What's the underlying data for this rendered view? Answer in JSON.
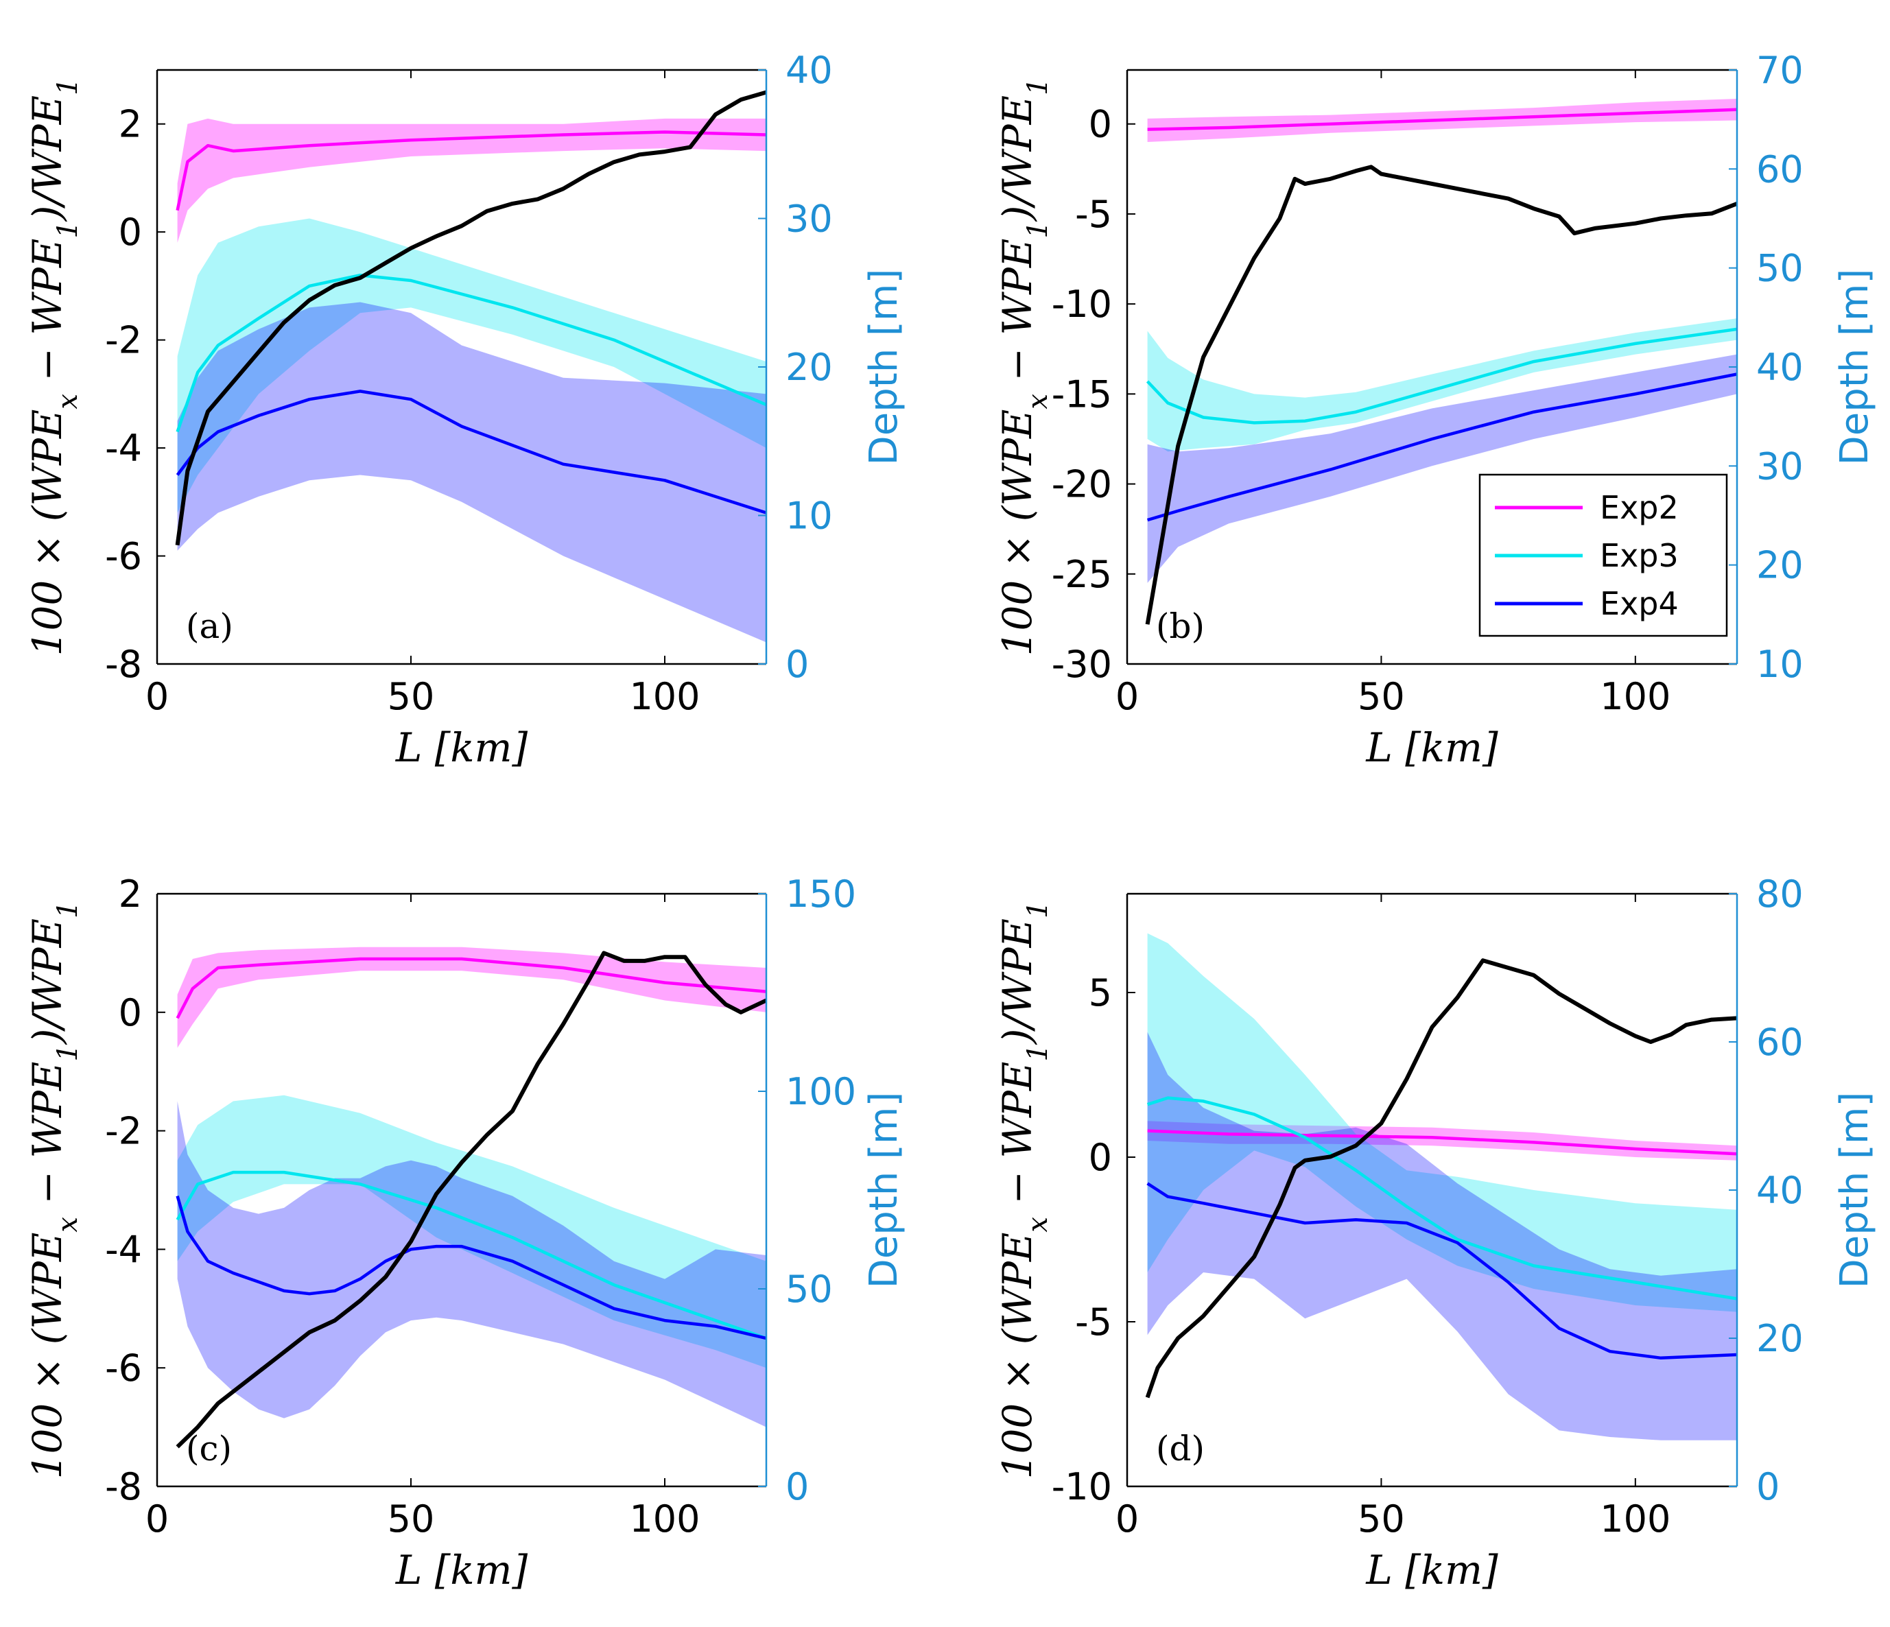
{
  "colors": {
    "exp2": "#ff00ff",
    "exp3": "#00e5ee",
    "exp4": "#0000ff",
    "depth": "#000000",
    "right_axis": "#1f8fd4"
  },
  "chart_data": [
    {
      "type": "line",
      "panel_label": "(a)",
      "xlabel": "L [km]",
      "ylabel": "100 × (WPE_x − WPE_1)/WPE_1",
      "y2label": "Depth [m]",
      "xlim": [
        0,
        120
      ],
      "ylim": [
        -8,
        3
      ],
      "y2lim": [
        0,
        40
      ],
      "xticks": [
        "0",
        "50",
        "100"
      ],
      "yticks": [
        "-8",
        "-6",
        "-4",
        "-2",
        "0",
        "2"
      ],
      "y2ticks": [
        "0",
        "10",
        "20",
        "30",
        "40"
      ],
      "series": [
        {
          "name": "Exp2",
          "x": [
            4,
            6,
            10,
            15,
            30,
            50,
            80,
            100,
            120
          ],
          "y": [
            0.4,
            1.3,
            1.6,
            1.5,
            1.6,
            1.7,
            1.8,
            1.85,
            1.8
          ],
          "lower": [
            -0.2,
            0.4,
            0.8,
            1.0,
            1.2,
            1.4,
            1.5,
            1.55,
            1.5
          ],
          "upper": [
            0.9,
            2.0,
            2.1,
            2.0,
            2.0,
            2.0,
            2.0,
            2.1,
            2.1
          ]
        },
        {
          "name": "Exp3",
          "x": [
            4,
            8,
            12,
            20,
            30,
            40,
            50,
            70,
            90,
            120
          ],
          "y": [
            -3.7,
            -2.6,
            -2.1,
            -1.6,
            -1.0,
            -0.8,
            -0.9,
            -1.4,
            -2.0,
            -3.2
          ],
          "lower": [
            -5.2,
            -4.5,
            -4.0,
            -3.0,
            -2.2,
            -1.5,
            -1.4,
            -1.9,
            -2.5,
            -4.0
          ],
          "upper": [
            -2.3,
            -0.8,
            -0.2,
            0.1,
            0.25,
            0.0,
            -0.3,
            -0.9,
            -1.5,
            -2.4
          ]
        },
        {
          "name": "Exp4",
          "x": [
            4,
            8,
            12,
            20,
            30,
            40,
            50,
            60,
            80,
            100,
            120
          ],
          "y": [
            -4.5,
            -4.0,
            -3.7,
            -3.4,
            -3.1,
            -2.95,
            -3.1,
            -3.6,
            -4.3,
            -4.6,
            -5.2
          ],
          "lower": [
            -5.9,
            -5.5,
            -5.2,
            -4.9,
            -4.6,
            -4.5,
            -4.6,
            -5.0,
            -6.0,
            -6.8,
            -7.6
          ],
          "upper": [
            -3.5,
            -2.7,
            -2.2,
            -1.8,
            -1.4,
            -1.3,
            -1.5,
            -2.1,
            -2.7,
            -2.8,
            -3.0
          ]
        }
      ],
      "depth_profile": {
        "name": "Depth",
        "x": [
          4,
          6,
          10,
          15,
          20,
          25,
          30,
          35,
          40,
          45,
          50,
          55,
          60,
          65,
          70,
          75,
          80,
          85,
          90,
          95,
          100,
          105,
          110,
          115,
          120
        ],
        "y": [
          8,
          13,
          17,
          19,
          21,
          23,
          24.5,
          25.5,
          26,
          27,
          28,
          28.8,
          29.5,
          30.5,
          31,
          31.3,
          32,
          33,
          33.8,
          34.3,
          34.5,
          34.8,
          37,
          38,
          38.5
        ]
      }
    },
    {
      "type": "line",
      "panel_label": "(b)",
      "xlabel": "L [km]",
      "ylabel": "100 × (WPE_x − WPE_1)/WPE_1",
      "y2label": "Depth [m]",
      "xlim": [
        0,
        120
      ],
      "ylim": [
        -30,
        3
      ],
      "y2lim": [
        10,
        70
      ],
      "xticks": [
        "0",
        "50",
        "100"
      ],
      "yticks": [
        "-30",
        "-25",
        "-20",
        "-15",
        "-10",
        "-5",
        "0"
      ],
      "y2ticks": [
        "10",
        "20",
        "30",
        "40",
        "50",
        "60",
        "70"
      ],
      "legend": [
        "Exp2",
        "Exp3",
        "Exp4"
      ],
      "series": [
        {
          "name": "Exp2",
          "x": [
            4,
            20,
            40,
            60,
            80,
            100,
            120
          ],
          "y": [
            -0.3,
            -0.2,
            0.0,
            0.2,
            0.4,
            0.6,
            0.8
          ],
          "lower": [
            -1.0,
            -0.8,
            -0.5,
            -0.3,
            -0.1,
            0.1,
            0.2
          ],
          "upper": [
            0.3,
            0.4,
            0.5,
            0.7,
            0.9,
            1.2,
            1.4
          ]
        },
        {
          "name": "Exp3",
          "x": [
            4,
            8,
            15,
            25,
            35,
            45,
            60,
            80,
            100,
            120
          ],
          "y": [
            -14.3,
            -15.5,
            -16.3,
            -16.6,
            -16.5,
            -16.0,
            -14.8,
            -13.2,
            -12.2,
            -11.4
          ],
          "lower": [
            -17.5,
            -18.2,
            -18.0,
            -17.8,
            -17.0,
            -16.6,
            -15.4,
            -13.8,
            -12.8,
            -12.0
          ],
          "upper": [
            -11.5,
            -13.0,
            -14.2,
            -15.0,
            -15.2,
            -14.9,
            -13.9,
            -12.6,
            -11.6,
            -10.8
          ]
        },
        {
          "name": "Exp4",
          "x": [
            4,
            10,
            20,
            40,
            60,
            80,
            100,
            120
          ],
          "y": [
            -22.0,
            -21.5,
            -20.7,
            -19.2,
            -17.5,
            -16.0,
            -15.0,
            -13.9
          ],
          "lower": [
            -25.5,
            -23.5,
            -22.2,
            -20.7,
            -19.0,
            -17.5,
            -16.3,
            -15.0
          ],
          "upper": [
            -17.8,
            -18.2,
            -18.0,
            -17.2,
            -15.8,
            -14.8,
            -13.8,
            -12.8
          ]
        }
      ],
      "depth_profile": {
        "name": "Depth",
        "x": [
          4,
          6,
          10,
          15,
          20,
          25,
          30,
          33,
          35,
          40,
          45,
          48,
          50,
          55,
          60,
          65,
          70,
          75,
          80,
          85,
          88,
          92,
          100,
          105,
          110,
          115,
          120
        ],
        "y": [
          14,
          20,
          32,
          41,
          46,
          51,
          55,
          59,
          58.5,
          59,
          59.8,
          60.2,
          59.5,
          59,
          58.5,
          58,
          57.5,
          57,
          56,
          55.2,
          53.5,
          54,
          54.5,
          55,
          55.3,
          55.5,
          56.5
        ]
      }
    },
    {
      "type": "line",
      "panel_label": "(c)",
      "xlabel": "L [km]",
      "ylabel": "100 × (WPE_x − WPE_1)/WPE_1",
      "y2label": "Depth [m]",
      "xlim": [
        0,
        120
      ],
      "ylim": [
        -8,
        2
      ],
      "y2lim": [
        0,
        150
      ],
      "xticks": [
        "0",
        "50",
        "100"
      ],
      "yticks": [
        "-8",
        "-6",
        "-4",
        "-2",
        "0",
        "2"
      ],
      "y2ticks": [
        "0",
        "50",
        "100",
        "150"
      ],
      "series": [
        {
          "name": "Exp2",
          "x": [
            4,
            7,
            12,
            20,
            40,
            60,
            80,
            100,
            120
          ],
          "y": [
            -0.1,
            0.4,
            0.75,
            0.8,
            0.9,
            0.9,
            0.75,
            0.5,
            0.35
          ],
          "lower": [
            -0.6,
            -0.2,
            0.4,
            0.55,
            0.7,
            0.7,
            0.55,
            0.2,
            0.0
          ],
          "upper": [
            0.3,
            0.9,
            1.0,
            1.05,
            1.1,
            1.1,
            1.0,
            0.85,
            0.75
          ]
        },
        {
          "name": "Exp3",
          "x": [
            4,
            8,
            15,
            25,
            40,
            55,
            70,
            90,
            110,
            120
          ],
          "y": [
            -3.5,
            -2.9,
            -2.7,
            -2.7,
            -2.9,
            -3.3,
            -3.8,
            -4.6,
            -5.2,
            -5.5
          ],
          "lower": [
            -4.2,
            -3.7,
            -3.2,
            -2.9,
            -2.9,
            -3.8,
            -4.4,
            -5.2,
            -5.7,
            -6.0
          ],
          "upper": [
            -2.5,
            -1.9,
            -1.5,
            -1.4,
            -1.7,
            -2.2,
            -2.6,
            -3.3,
            -3.9,
            -4.2
          ]
        },
        {
          "name": "Exp4",
          "x": [
            4,
            6,
            10,
            15,
            20,
            25,
            30,
            35,
            40,
            45,
            50,
            55,
            60,
            70,
            80,
            90,
            100,
            110,
            120
          ],
          "y": [
            -3.1,
            -3.7,
            -4.2,
            -4.4,
            -4.55,
            -4.7,
            -4.75,
            -4.7,
            -4.5,
            -4.2,
            -4.0,
            -3.95,
            -3.95,
            -4.2,
            -4.6,
            -5.0,
            -5.2,
            -5.3,
            -5.5
          ],
          "lower": [
            -4.5,
            -5.3,
            -6.0,
            -6.4,
            -6.7,
            -6.85,
            -6.7,
            -6.3,
            -5.8,
            -5.4,
            -5.2,
            -5.15,
            -5.2,
            -5.4,
            -5.6,
            -5.9,
            -6.2,
            -6.6,
            -7.0
          ],
          "upper": [
            -1.5,
            -2.4,
            -3.0,
            -3.3,
            -3.4,
            -3.3,
            -3.0,
            -2.8,
            -2.8,
            -2.6,
            -2.5,
            -2.6,
            -2.8,
            -3.1,
            -3.6,
            -4.2,
            -4.5,
            -4.0,
            -4.1
          ]
        }
      ],
      "depth_profile": {
        "name": "Depth",
        "x": [
          4,
          8,
          12,
          16,
          20,
          25,
          30,
          35,
          40,
          45,
          50,
          55,
          60,
          65,
          70,
          75,
          80,
          85,
          88,
          92,
          96,
          100,
          104,
          108,
          112,
          115,
          120
        ],
        "y": [
          10,
          15,
          21,
          25,
          29,
          34,
          39,
          42,
          47,
          53,
          62,
          74,
          82,
          89,
          95,
          107,
          117,
          128,
          135,
          133,
          133,
          134,
          134,
          127,
          122,
          120,
          123
        ]
      }
    },
    {
      "type": "line",
      "panel_label": "(d)",
      "xlabel": "L [km]",
      "ylabel": "100 × (WPE_x − WPE_1)/WPE_1",
      "y2label": "Depth [m]",
      "xlim": [
        0,
        120
      ],
      "ylim": [
        -10,
        8
      ],
      "y2lim": [
        0,
        80
      ],
      "xticks": [
        "0",
        "50",
        "100"
      ],
      "yticks": [
        "-10",
        "-5",
        "0",
        "5"
      ],
      "y2ticks": [
        "0",
        "20",
        "40",
        "60",
        "80"
      ],
      "series": [
        {
          "name": "Exp2",
          "x": [
            4,
            20,
            40,
            60,
            80,
            100,
            120
          ],
          "y": [
            0.8,
            0.7,
            0.65,
            0.6,
            0.45,
            0.25,
            0.1
          ],
          "lower": [
            0.5,
            0.4,
            0.4,
            0.35,
            0.2,
            0.0,
            -0.1
          ],
          "upper": [
            1.1,
            1.0,
            0.95,
            0.9,
            0.75,
            0.5,
            0.35
          ]
        },
        {
          "name": "Exp3",
          "x": [
            4,
            8,
            15,
            25,
            35,
            45,
            55,
            65,
            80,
            100,
            120
          ],
          "y": [
            1.6,
            1.8,
            1.7,
            1.3,
            0.6,
            -0.4,
            -1.5,
            -2.5,
            -3.3,
            -3.8,
            -4.3
          ],
          "lower": [
            -3.5,
            -2.5,
            -1.0,
            0.2,
            -0.3,
            -1.5,
            -2.5,
            -3.3,
            -4.0,
            -4.5,
            -4.7
          ],
          "upper": [
            6.8,
            6.5,
            5.5,
            4.2,
            2.5,
            0.7,
            -0.4,
            -0.6,
            -1.0,
            -1.4,
            -1.6
          ]
        },
        {
          "name": "Exp4",
          "x": [
            4,
            8,
            15,
            25,
            35,
            45,
            55,
            65,
            75,
            85,
            95,
            105,
            120
          ],
          "y": [
            -0.8,
            -1.2,
            -1.4,
            -1.7,
            -2.0,
            -1.9,
            -2.0,
            -2.6,
            -3.8,
            -5.2,
            -5.9,
            -6.1,
            -6.0
          ],
          "lower": [
            -5.4,
            -4.5,
            -3.5,
            -3.7,
            -4.9,
            -4.3,
            -3.7,
            -5.3,
            -7.2,
            -8.3,
            -8.5,
            -8.6,
            -8.6
          ],
          "upper": [
            3.8,
            2.5,
            1.5,
            0.8,
            0.7,
            0.9,
            0.4,
            -0.8,
            -1.8,
            -2.8,
            -3.4,
            -3.6,
            -3.4
          ]
        }
      ],
      "depth_profile": {
        "name": "Depth",
        "x": [
          4,
          6,
          10,
          15,
          20,
          25,
          30,
          33,
          35,
          40,
          45,
          50,
          55,
          60,
          65,
          70,
          75,
          80,
          85,
          90,
          95,
          100,
          103,
          107,
          110,
          115,
          120
        ],
        "y": [
          12,
          16,
          20,
          23,
          27,
          31,
          38,
          43,
          44,
          44.5,
          46,
          49,
          55,
          62,
          66,
          71,
          70,
          69,
          66.5,
          64.5,
          62.5,
          60.8,
          60,
          61,
          62.3,
          63,
          63.2
        ]
      }
    }
  ]
}
